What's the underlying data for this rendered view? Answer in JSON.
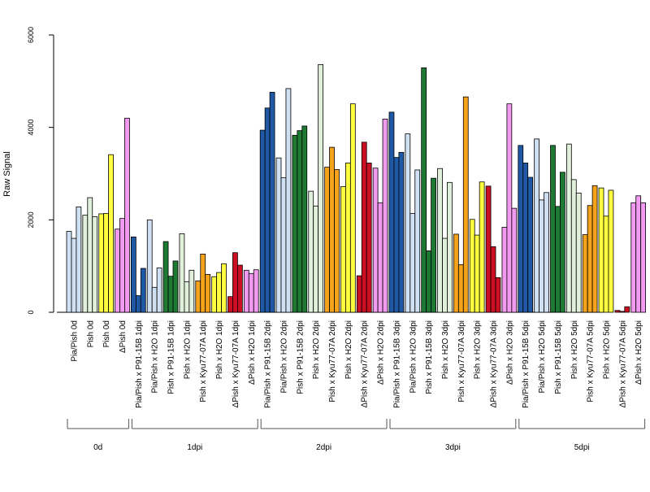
{
  "chart_data": {
    "type": "bar",
    "ylabel": "Raw Signal",
    "ylim": [
      0,
      6000
    ],
    "yticks": [
      "0",
      "2000",
      "4000",
      "6000"
    ],
    "grid": false,
    "legend": "none",
    "colors": {
      "Pia/Pish": "#cfe0f2",
      "Pish": "#e1f0da",
      "Pia/Pish x P91-15B": "#1f59a6",
      "Pish x P91-15B": "#1e7a32",
      "Pish x Kyu77-07A": "#f5a31a",
      "ΔPish x Kyu77-07A": "#cc0f22",
      "Pish (0d)": "#ffff40",
      "ΔPish": "#f29af0",
      "Pish x H2O": "#ffff40",
      "ΔPish x H2O": "#f29af0"
    },
    "groups": [
      {
        "label": "0d",
        "categories": [
          {
            "label": "Pia/Pish 0d",
            "color": "#cfe0f2",
            "values": [
              1750,
              1600,
              2280
            ]
          },
          {
            "label": "Pish 0d",
            "color": "#e1f0da",
            "values": [
              2100,
              2480,
              2070
            ]
          },
          {
            "label": "Pish 0d",
            "color": "#ffff40",
            "values": [
              2130,
              2140,
              3410
            ]
          },
          {
            "label": "ΔPish 0d",
            "color": "#f29af0",
            "values": [
              1800,
              2030,
              4200
            ]
          }
        ]
      },
      {
        "label": "1dpi",
        "categories": [
          {
            "label": "Pia/Pish x P91-15B 1dpi",
            "color": "#1f59a6",
            "values": [
              1630,
              360,
              950
            ]
          },
          {
            "label": "Pia/Pish x H2O 1dpi",
            "color": "#cfe0f2",
            "values": [
              2000,
              540,
              960
            ]
          },
          {
            "label": "Pish x P91-15B 1dpi",
            "color": "#1e7a32",
            "values": [
              1530,
              780,
              1110
            ]
          },
          {
            "label": "Pish x H2O 1dpi",
            "color": "#e1f0da",
            "values": [
              1700,
              660,
              910
            ]
          },
          {
            "label": "Pish x Kyu77-07A 1dpi",
            "color": "#f5a31a",
            "values": [
              680,
              1260,
              820
            ]
          },
          {
            "label": "Pish x H2O 1dpi",
            "color": "#ffff40",
            "values": [
              770,
              860,
              1050
            ]
          },
          {
            "label": "ΔPish x Kyu77-07A 1dpi",
            "color": "#cc0f22",
            "values": [
              340,
              1290,
              1020
            ]
          },
          {
            "label": "ΔPish x H2O 1dpi",
            "color": "#f29af0",
            "values": [
              910,
              840,
              920
            ]
          }
        ]
      },
      {
        "label": "2dpi",
        "categories": [
          {
            "label": "Pia/Pish x P91-15B 2dpi",
            "color": "#1f59a6",
            "values": [
              3940,
              4420,
              4760
            ]
          },
          {
            "label": "Pia/Pish x H2O 2dpi",
            "color": "#cfe0f2",
            "values": [
              3340,
              2910,
              4840
            ]
          },
          {
            "label": "Pish x P91-15B 2dpi",
            "color": "#1e7a32",
            "values": [
              3830,
              3930,
              4030
            ]
          },
          {
            "label": "Pish x H2O 2dpi",
            "color": "#e1f0da",
            "values": [
              2620,
              2300,
              5360
            ]
          },
          {
            "label": "Pish x Kyu77-07A 2dpi",
            "color": "#f5a31a",
            "values": [
              3140,
              3570,
              3090
            ]
          },
          {
            "label": "Pish x H2O 2dpi",
            "color": "#ffff40",
            "values": [
              2720,
              3230,
              4510
            ]
          },
          {
            "label": "ΔPish x Kyu77-07A 2dpi",
            "color": "#cc0f22",
            "values": [
              790,
              3680,
              3230
            ]
          },
          {
            "label": "ΔPish x H2O 2dpi",
            "color": "#f29af0",
            "values": [
              3120,
              2370,
              4180
            ]
          }
        ]
      },
      {
        "label": "3dpi",
        "categories": [
          {
            "label": "Pia/Pish x P91-15B 3dpi",
            "color": "#1f59a6",
            "values": [
              4330,
              3350,
              3460
            ]
          },
          {
            "label": "Pia/Pish x H2O 3dpi",
            "color": "#cfe0f2",
            "values": [
              3860,
              2140,
              3080
            ]
          },
          {
            "label": "Pish x P91-15B 3dpi",
            "color": "#1e7a32",
            "values": [
              5290,
              1330,
              2900
            ]
          },
          {
            "label": "Pish x H2O 3dpi",
            "color": "#e1f0da",
            "values": [
              3110,
              1600,
              2810
            ]
          },
          {
            "label": "Pish x Kyu77-07A 3dpi",
            "color": "#f5a31a",
            "values": [
              1690,
              1030,
              4660
            ]
          },
          {
            "label": "Pish x H2O 3dpi",
            "color": "#ffff40",
            "values": [
              2010,
              1670,
              2820
            ]
          },
          {
            "label": "ΔPish x Kyu77-07A 3dpi",
            "color": "#cc0f22",
            "values": [
              2730,
              1420,
              750
            ]
          },
          {
            "label": "ΔPish x H2O 3dpi",
            "color": "#f29af0",
            "values": [
              1840,
              4510,
              2250
            ]
          }
        ]
      },
      {
        "label": "5dpi",
        "categories": [
          {
            "label": "Pia/Pish x P91-15B 5dpi",
            "color": "#1f59a6",
            "values": [
              3610,
              3230,
              2920
            ]
          },
          {
            "label": "Pia/Pish x H2O 5dpi",
            "color": "#cfe0f2",
            "values": [
              3750,
              2430,
              2590
            ]
          },
          {
            "label": "Pish x P91-15B 5dpi",
            "color": "#1e7a32",
            "values": [
              3610,
              2290,
              3030
            ]
          },
          {
            "label": "Pish x H2O 5dpi",
            "color": "#e1f0da",
            "values": [
              3640,
              2870,
              2580
            ]
          },
          {
            "label": "Pish x Kyu77-07A 5dpi",
            "color": "#f5a31a",
            "values": [
              1680,
              2310,
              2740
            ]
          },
          {
            "label": "Pish x H2O 5dpi",
            "color": "#ffff40",
            "values": [
              2690,
              2080,
              2640
            ]
          },
          {
            "label": "ΔPish x Kyu77-07A 5dpi",
            "color": "#cc0f22",
            "values": [
              40,
              20,
              120
            ]
          },
          {
            "label": "ΔPish x H2O 5dpi",
            "color": "#f29af0",
            "values": [
              2370,
              2520,
              2370
            ]
          }
        ]
      }
    ]
  }
}
